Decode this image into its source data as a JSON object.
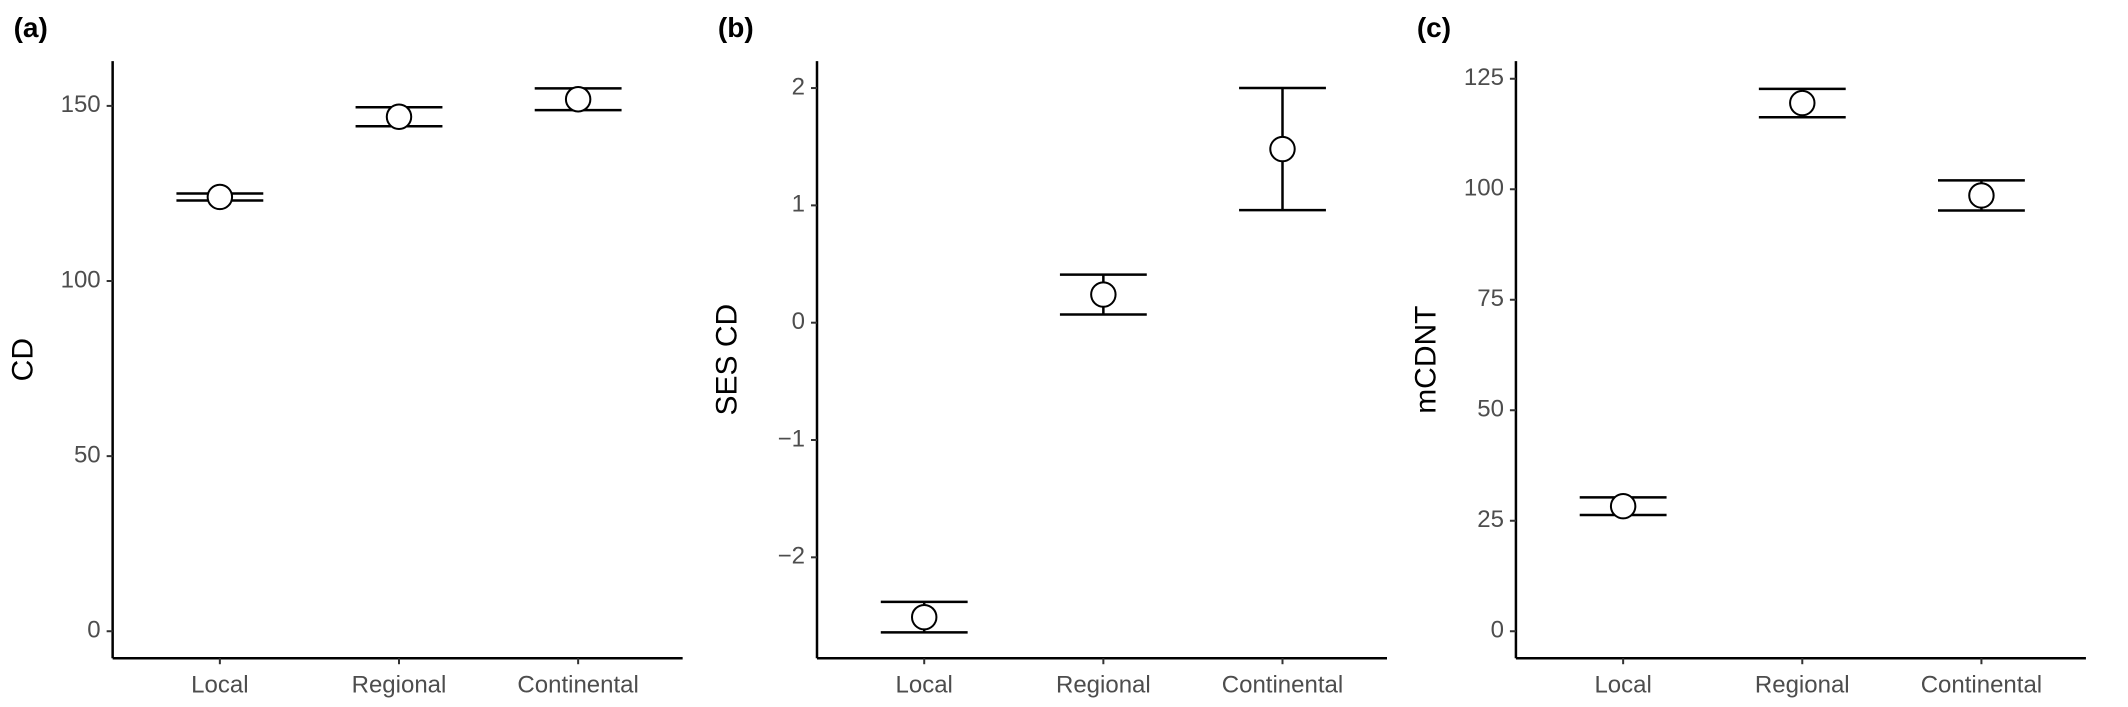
{
  "chart_data": [
    {
      "type": "errorbar",
      "label": "(a)",
      "ylabel": "CD",
      "categories": [
        "Local",
        "Regional",
        "Continental"
      ],
      "values": [
        124,
        146.9,
        151.9
      ],
      "errors": [
        1,
        2.7,
        3.1
      ],
      "ylim": [
        -7.7,
        162.8
      ],
      "yticks": [
        0,
        50,
        100,
        150
      ]
    },
    {
      "type": "errorbar",
      "label": "(b)",
      "ylabel": "SES CD",
      "categories": [
        "Local",
        "Regional",
        "Continental"
      ],
      "values": [
        -2.51,
        0.24,
        1.48
      ],
      "errors": [
        0.13,
        0.17,
        0.52
      ],
      "ylim": [
        -2.86,
        2.23
      ],
      "yticks": [
        {
          "value": -2,
          "label": "−2"
        },
        {
          "value": -1,
          "label": "−1"
        },
        0,
        1,
        2
      ]
    },
    {
      "type": "errorbar",
      "label": "(c)",
      "ylabel": "mCDNT",
      "categories": [
        "Local",
        "Regional",
        "Continental"
      ],
      "values": [
        28.3,
        119.5,
        98.6
      ],
      "errors": [
        2,
        3.2,
        3.4
      ],
      "ylim": [
        -6.1,
        129
      ],
      "yticks": [
        0,
        25,
        50,
        75,
        100,
        125
      ]
    }
  ]
}
